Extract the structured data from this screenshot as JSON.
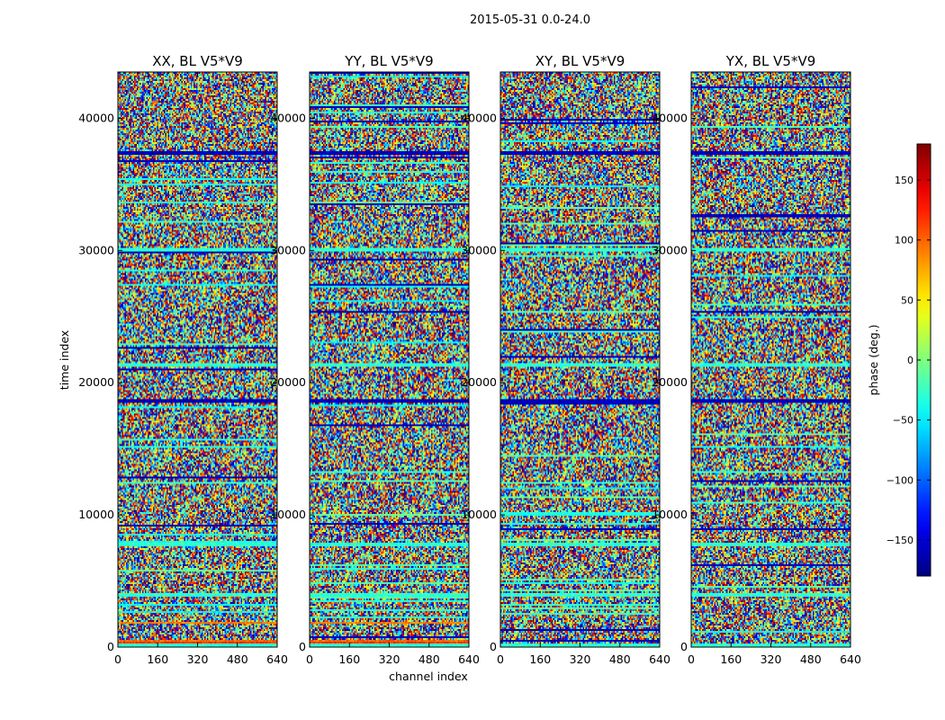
{
  "chart_data": {
    "type": "heatmap",
    "suptitle": "2015-05-31 0.0-24.0",
    "xlabel": "channel index",
    "ylabel": "time index",
    "xlim": [
      0,
      640
    ],
    "ylim": [
      0,
      43500
    ],
    "xticks": [
      0,
      160,
      320,
      480,
      640
    ],
    "yticks": [
      0,
      10000,
      20000,
      30000,
      40000
    ],
    "colormap": "jet",
    "colorbar": {
      "label": "phase (deg.)",
      "range": [
        -180,
        180
      ],
      "ticks": [
        -150,
        -100,
        -50,
        0,
        50,
        100,
        150
      ]
    },
    "panels": [
      {
        "title": "XX, BL V5*V9"
      },
      {
        "title": "YY, BL V5*V9"
      },
      {
        "title": "XY, BL V5*V9"
      },
      {
        "title": "YX, BL V5*V9"
      }
    ],
    "grid": false
  }
}
